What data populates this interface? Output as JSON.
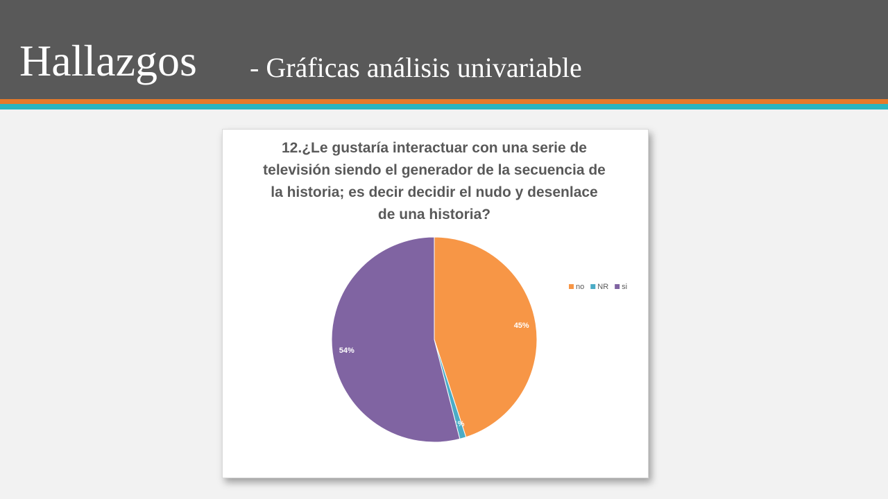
{
  "header": {
    "title": "Hallazgos",
    "subtitle": "- Gráficas análisis univariable"
  },
  "chart_data": {
    "type": "pie",
    "title": "12.¿Le gustaría interactuar con una serie de televisión siendo el generador de la secuencia de la historia; es decir decidir el nudo y desenlace de una historia?",
    "categories": [
      "no",
      "NR",
      "si"
    ],
    "values": [
      45,
      1,
      54
    ],
    "value_labels": [
      "45%",
      "1%",
      "54%"
    ],
    "colors": [
      "#f79646",
      "#4bacc6",
      "#8064a2"
    ],
    "legend": "right"
  }
}
